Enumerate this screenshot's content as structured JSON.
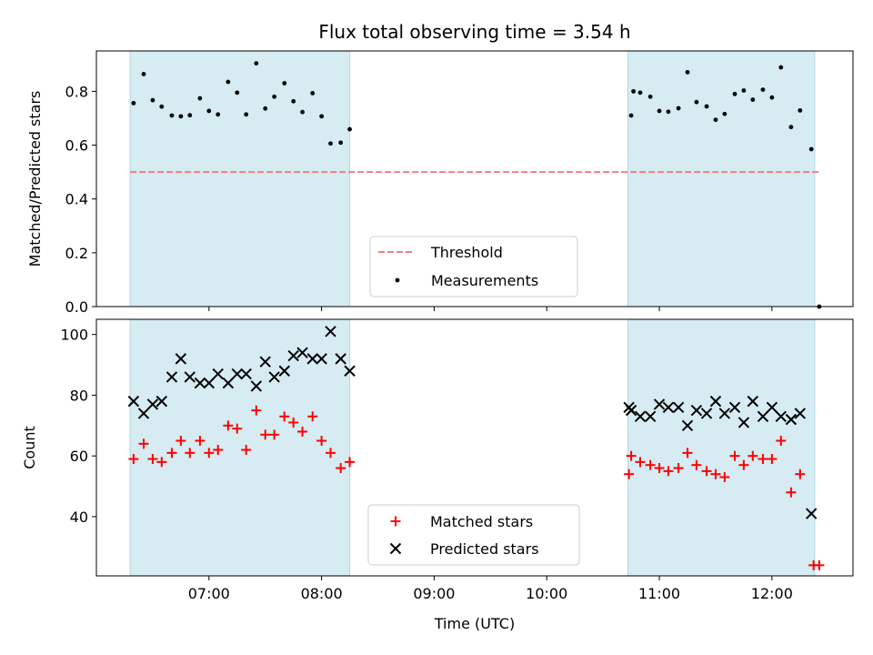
{
  "chart_data": [
    {
      "type": "scatter",
      "title": "Flux total observing time = 3.54 h",
      "ylabel": "Matched/Predicted stars",
      "ylim": [
        0,
        0.95
      ],
      "yticks": [
        "0.0",
        "0.2",
        "0.4",
        "0.6",
        "0.8"
      ],
      "shaded_spans_hours": [
        [
          6.3,
          8.25
        ],
        [
          10.72,
          12.38
        ]
      ],
      "threshold": {
        "name": "Threshold",
        "value": 0.5,
        "x_start": 6.3,
        "x_end": 12.43,
        "color": "#f08080"
      },
      "series": [
        {
          "name": "Measurements",
          "color": "#000000",
          "x": [
            6.33,
            6.42,
            6.5,
            6.58,
            6.67,
            6.75,
            6.83,
            6.92,
            7.0,
            7.08,
            7.17,
            7.25,
            7.33,
            7.42,
            7.5,
            7.58,
            7.67,
            7.75,
            7.83,
            7.92,
            8.0,
            8.08,
            8.17,
            8.25,
            10.75,
            10.77,
            10.83,
            10.92,
            11.0,
            11.08,
            11.17,
            11.25,
            11.33,
            11.42,
            11.5,
            11.58,
            11.67,
            11.75,
            11.83,
            11.92,
            12.0,
            12.08,
            12.17,
            12.25,
            12.35,
            12.42
          ],
          "values": [
            0.756,
            0.864,
            0.767,
            0.743,
            0.71,
            0.707,
            0.711,
            0.774,
            0.727,
            0.714,
            0.835,
            0.795,
            0.714,
            0.904,
            0.736,
            0.78,
            0.83,
            0.763,
            0.723,
            0.793,
            0.707,
            0.606,
            0.609,
            0.659,
            0.71,
            0.8,
            0.795,
            0.78,
            0.727,
            0.724,
            0.737,
            0.871,
            0.76,
            0.744,
            0.694,
            0.716,
            0.79,
            0.803,
            0.769,
            0.806,
            0.777,
            0.889,
            0.667,
            0.729,
            0.585,
            0.0
          ]
        }
      ]
    },
    {
      "type": "scatter",
      "xlabel": "Time (UTC)",
      "ylabel": "Count",
      "ylim": [
        20.5,
        105
      ],
      "yticks": [
        "40",
        "60",
        "80",
        "100"
      ],
      "xlim_hours": [
        6.0,
        12.72
      ],
      "xticks": [
        "07:00",
        "08:00",
        "09:00",
        "10:00",
        "11:00",
        "12:00"
      ],
      "shaded_spans_hours": [
        [
          6.3,
          8.25
        ],
        [
          10.72,
          12.38
        ]
      ],
      "series": [
        {
          "name": "Matched stars",
          "marker": "plus",
          "color": "#ff0000",
          "x": [
            6.33,
            6.42,
            6.5,
            6.58,
            6.67,
            6.75,
            6.83,
            6.92,
            7.0,
            7.08,
            7.17,
            7.25,
            7.33,
            7.42,
            7.5,
            7.58,
            7.67,
            7.75,
            7.83,
            7.92,
            8.0,
            8.08,
            8.17,
            8.25,
            10.73,
            10.75,
            10.83,
            10.92,
            11.0,
            11.08,
            11.17,
            11.25,
            11.33,
            11.42,
            11.5,
            11.58,
            11.67,
            11.75,
            11.83,
            11.92,
            12.0,
            12.08,
            12.17,
            12.25,
            12.37,
            12.42
          ],
          "values": [
            59,
            64,
            59,
            58,
            61,
            65,
            61,
            65,
            61,
            62,
            70,
            69,
            62,
            75,
            67,
            67,
            73,
            71,
            68,
            73,
            65,
            61,
            56,
            58,
            54,
            60,
            58,
            57,
            56,
            55,
            56,
            61,
            57,
            55,
            54,
            53,
            60,
            57,
            60,
            59,
            59,
            65,
            48,
            54,
            24,
            24
          ]
        },
        {
          "name": "Predicted stars",
          "marker": "x",
          "color": "#000000",
          "x": [
            6.33,
            6.42,
            6.5,
            6.58,
            6.67,
            6.75,
            6.83,
            6.92,
            7.0,
            7.08,
            7.17,
            7.25,
            7.33,
            7.42,
            7.5,
            7.58,
            7.67,
            7.75,
            7.83,
            7.92,
            8.0,
            8.08,
            8.17,
            8.25,
            10.73,
            10.75,
            10.83,
            10.92,
            11.0,
            11.08,
            11.17,
            11.25,
            11.33,
            11.42,
            11.5,
            11.58,
            11.67,
            11.75,
            11.83,
            11.92,
            12.0,
            12.08,
            12.17,
            12.25,
            12.35
          ],
          "values": [
            78,
            74,
            77,
            78,
            86,
            92,
            86,
            84,
            84,
            87,
            84,
            87,
            87,
            83,
            91,
            86,
            88,
            93,
            94,
            92,
            92,
            101,
            92,
            88,
            76,
            75,
            73,
            73,
            77,
            76,
            76,
            70,
            75,
            74,
            78,
            74,
            76,
            71,
            78,
            73,
            76,
            73,
            72,
            74,
            41
          ]
        }
      ]
    }
  ]
}
